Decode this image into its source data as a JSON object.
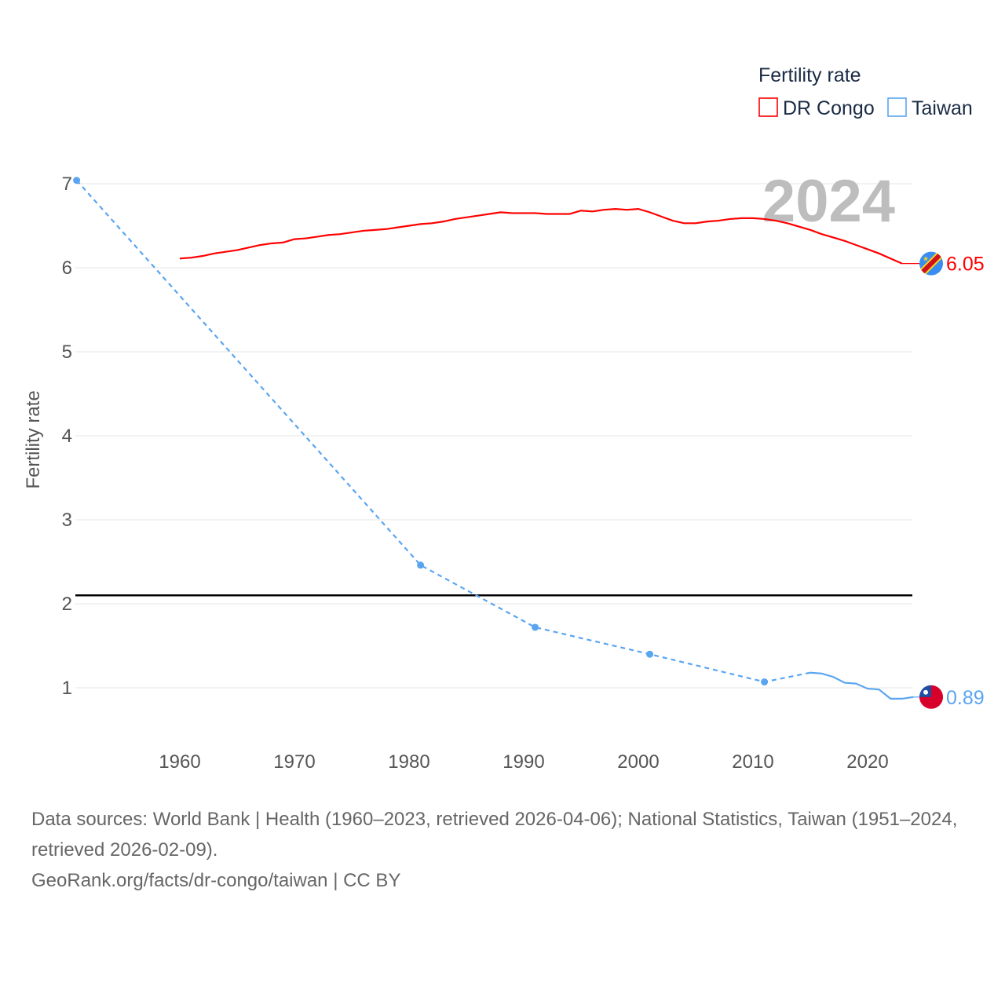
{
  "chart_data": {
    "type": "line",
    "title": "",
    "xlabel": "",
    "ylabel": "Fertility rate",
    "xlim": [
      1951,
      2024
    ],
    "ylim": [
      0.5,
      7.1
    ],
    "x_ticks": [
      1960,
      1970,
      1980,
      1990,
      2000,
      2010,
      2020
    ],
    "y_ticks": [
      1,
      2,
      3,
      4,
      5,
      6,
      7
    ],
    "grid": true,
    "year_label": "2024",
    "legend": {
      "title": "Fertility rate",
      "position": "top-right"
    },
    "reference_line": {
      "value": 2.1,
      "color": "#000000"
    },
    "series": [
      {
        "name": "DR Congo",
        "color": "#ff0000",
        "end_label": "6.05",
        "flag": "dr-congo-flag-icon",
        "x": [
          1960,
          1961,
          1962,
          1963,
          1964,
          1965,
          1966,
          1967,
          1968,
          1969,
          1970,
          1971,
          1972,
          1973,
          1974,
          1975,
          1976,
          1977,
          1978,
          1979,
          1980,
          1981,
          1982,
          1983,
          1984,
          1985,
          1986,
          1987,
          1988,
          1989,
          1990,
          1991,
          1992,
          1993,
          1994,
          1995,
          1996,
          1997,
          1998,
          1999,
          2000,
          2001,
          2002,
          2003,
          2004,
          2005,
          2006,
          2007,
          2008,
          2009,
          2010,
          2011,
          2012,
          2013,
          2014,
          2015,
          2016,
          2017,
          2018,
          2019,
          2020,
          2021,
          2022,
          2023
        ],
        "values": [
          6.11,
          6.12,
          6.14,
          6.17,
          6.19,
          6.21,
          6.24,
          6.27,
          6.29,
          6.3,
          6.34,
          6.35,
          6.37,
          6.39,
          6.4,
          6.42,
          6.44,
          6.45,
          6.46,
          6.48,
          6.5,
          6.52,
          6.53,
          6.55,
          6.58,
          6.6,
          6.62,
          6.64,
          6.66,
          6.65,
          6.65,
          6.65,
          6.64,
          6.64,
          6.64,
          6.68,
          6.67,
          6.69,
          6.7,
          6.69,
          6.7,
          6.66,
          6.61,
          6.56,
          6.53,
          6.53,
          6.55,
          6.56,
          6.58,
          6.59,
          6.59,
          6.58,
          6.56,
          6.53,
          6.49,
          6.45,
          6.4,
          6.36,
          6.32,
          6.27,
          6.22,
          6.17,
          6.11,
          6.05
        ]
      },
      {
        "name": "Taiwan",
        "color": "#5aa5f0",
        "end_label": "0.89",
        "flag": "taiwan-flag-icon",
        "sparse_points": {
          "x": [
            1951,
            1981,
            1991,
            2001,
            2011
          ],
          "values": [
            7.04,
            2.46,
            1.72,
            1.4,
            1.07
          ]
        },
        "x": [
          2015,
          2016,
          2017,
          2018,
          2019,
          2020,
          2021,
          2022,
          2023,
          2024
        ],
        "values": [
          1.18,
          1.17,
          1.13,
          1.06,
          1.05,
          0.99,
          0.98,
          0.87,
          0.87,
          0.89
        ]
      }
    ]
  },
  "footer": {
    "sources": "Data sources: World Bank | Health (1960–2023, retrieved 2026-04-06); National Statistics, Taiwan (1951–2024, retrieved 2026-02-09).",
    "credit": "GeoRank.org/facts/dr-congo/taiwan | CC BY"
  }
}
